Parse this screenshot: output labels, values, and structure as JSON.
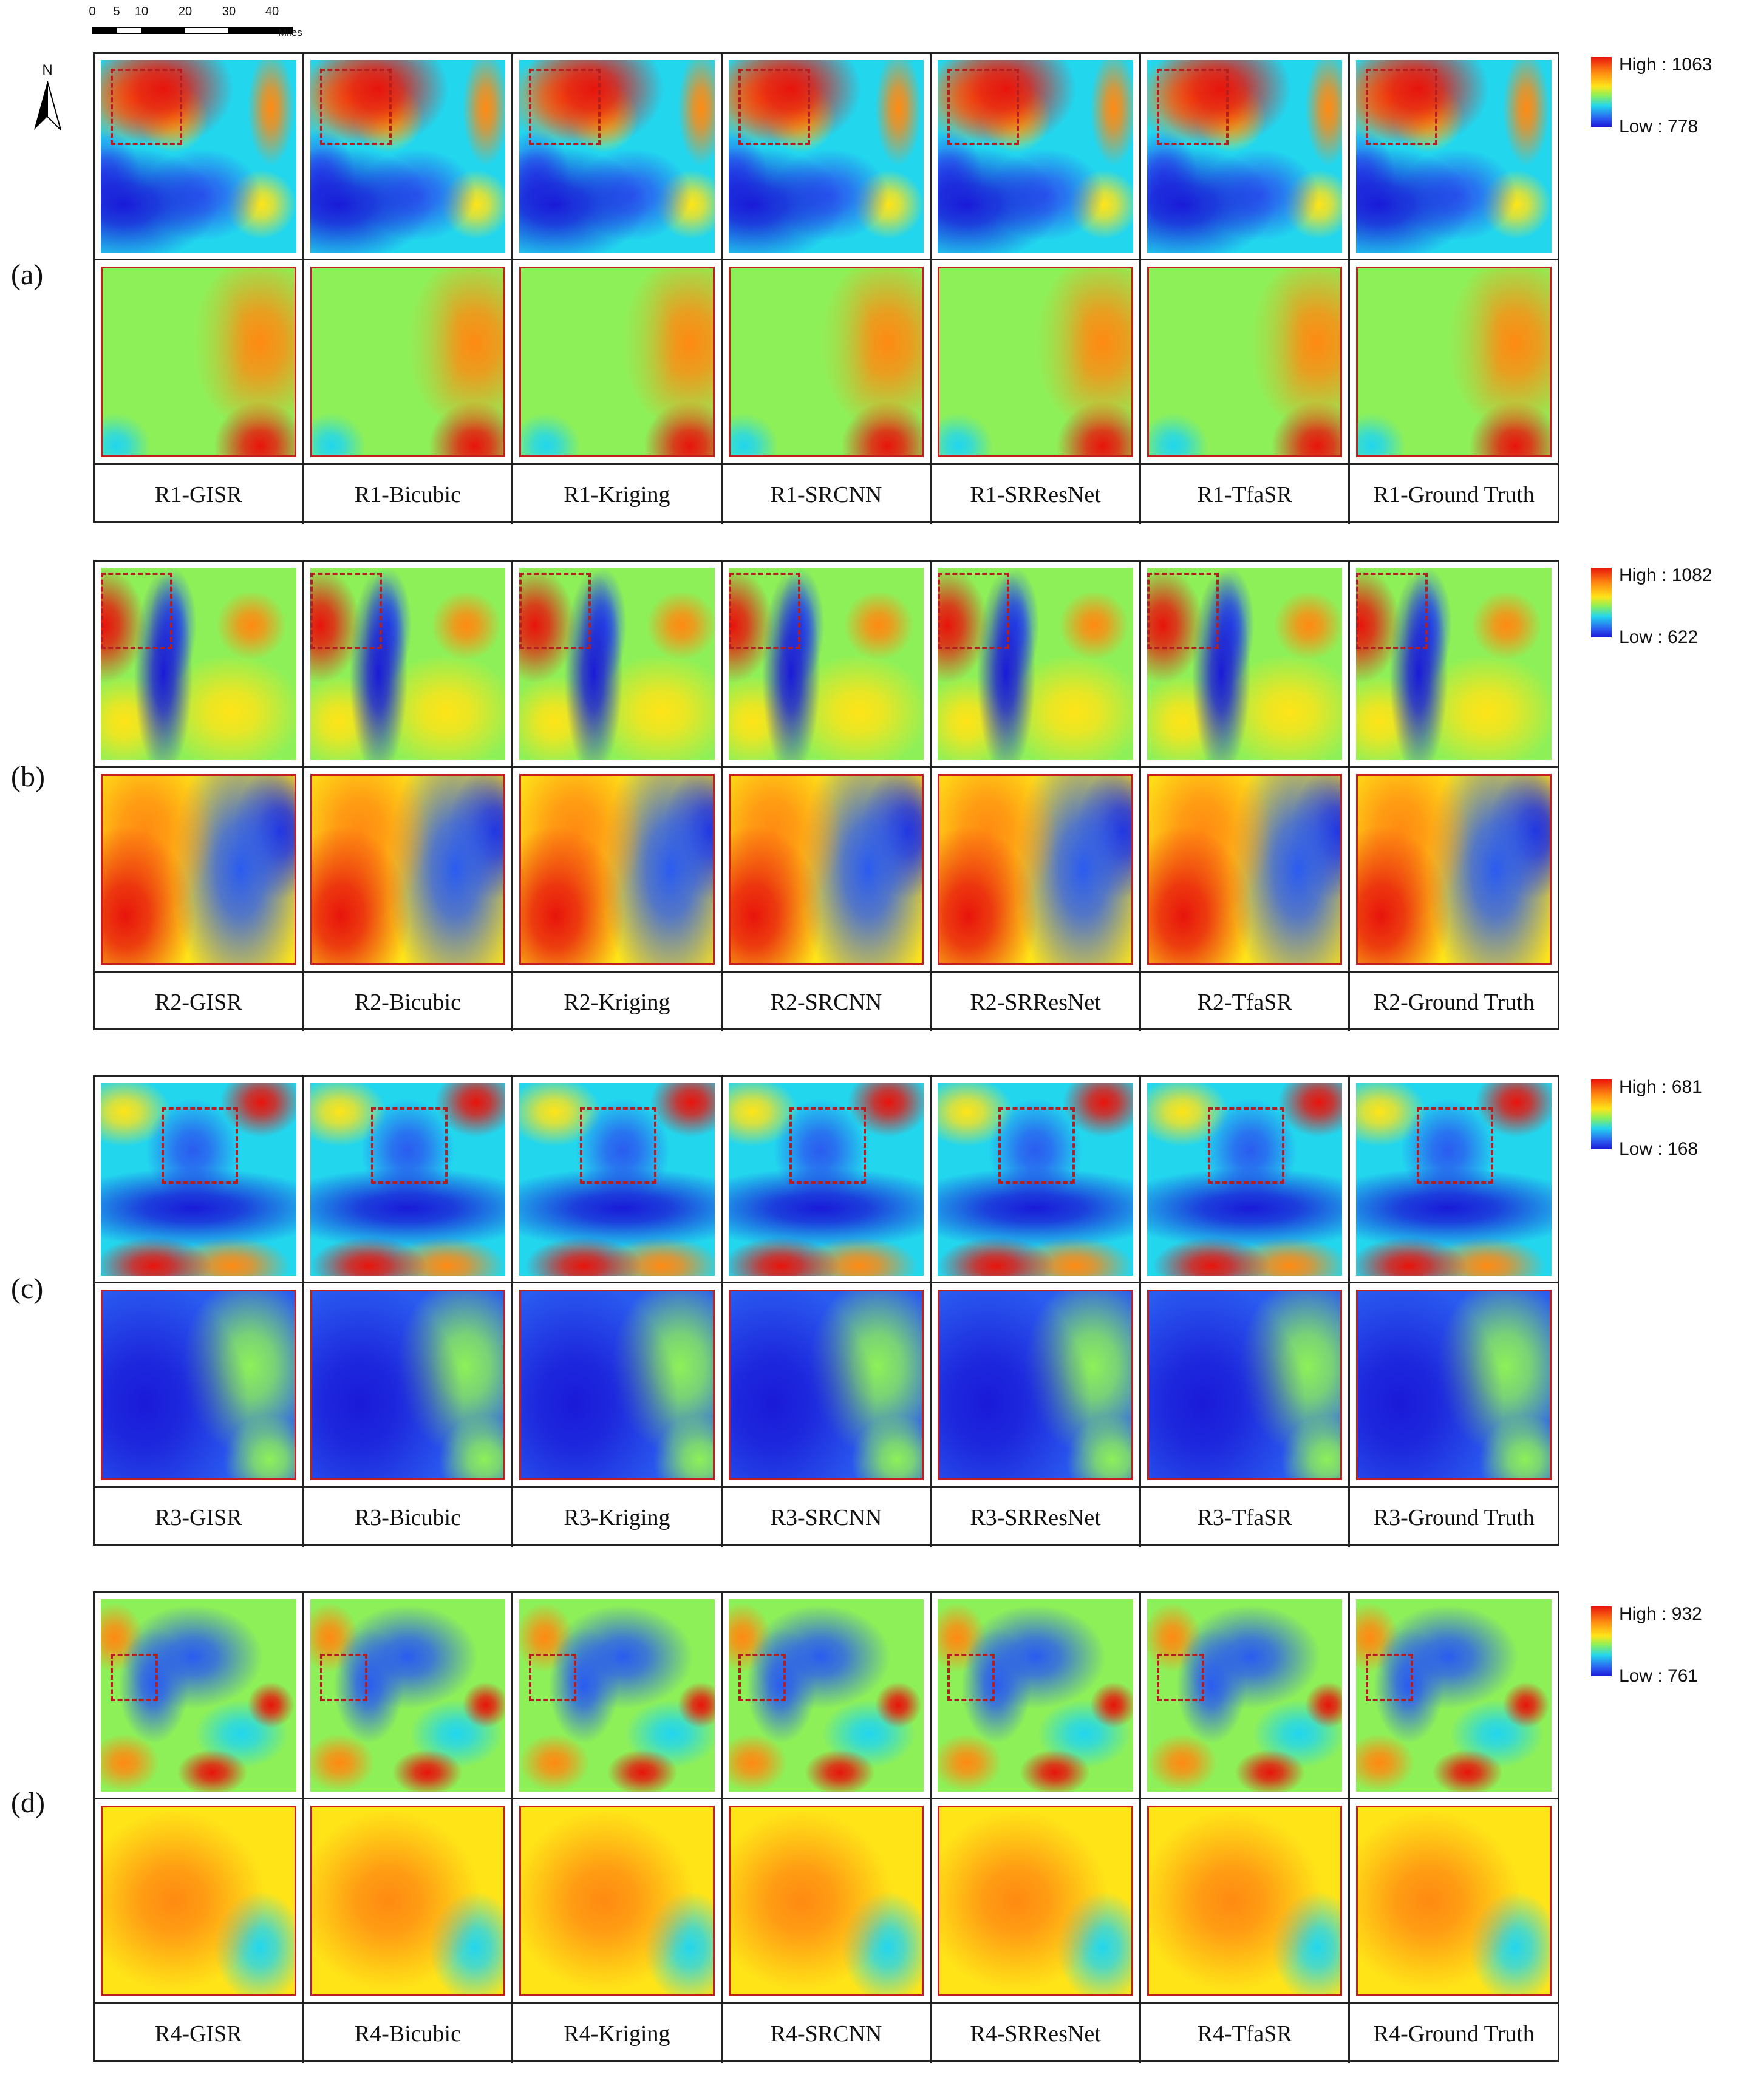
{
  "scalebar": {
    "ticks": [
      "0",
      "5",
      "10",
      "20",
      "30",
      "40"
    ],
    "unit": "Miles"
  },
  "north_arrow": {
    "label": "N"
  },
  "colormap": [
    "#1a1ad8",
    "#2a5cf0",
    "#22d6ee",
    "#8ef058",
    "#ffe418",
    "#ff8a12",
    "#e8140c"
  ],
  "highlight_color": "#b41e1e",
  "rows": [
    {
      "tag": "(a)",
      "legend": {
        "high": "High : 1063",
        "low": "Low : 778"
      },
      "labels": [
        "R1-GISR",
        "R1-Bicubic",
        "R1-Kriging",
        "R1-SRCNN",
        "R1-SRResNet",
        "R1-TfaSR",
        "R1-Ground Truth"
      ]
    },
    {
      "tag": "(b)",
      "legend": {
        "high": "High : 1082",
        "low": "Low : 622"
      },
      "labels": [
        "R2-GISR",
        "R2-Bicubic",
        "R2-Kriging",
        "R2-SRCNN",
        "R2-SRResNet",
        "R2-TfaSR",
        "R2-Ground Truth"
      ]
    },
    {
      "tag": "(c)",
      "legend": {
        "high": "High : 681",
        "low": "Low : 168"
      },
      "labels": [
        "R3-GISR",
        "R3-Bicubic",
        "R3-Kriging",
        "R3-SRCNN",
        "R3-SRResNet",
        "R3-TfaSR",
        "R3-Ground Truth"
      ]
    },
    {
      "tag": "(d)",
      "legend": {
        "high": "High : 932",
        "low": "Low : 761"
      },
      "labels": [
        "R4-GISR",
        "R4-Bicubic",
        "R4-Kriging",
        "R4-SRCNN",
        "R4-SRResNet",
        "R4-TfaSR",
        "R4-Ground Truth"
      ]
    }
  ]
}
